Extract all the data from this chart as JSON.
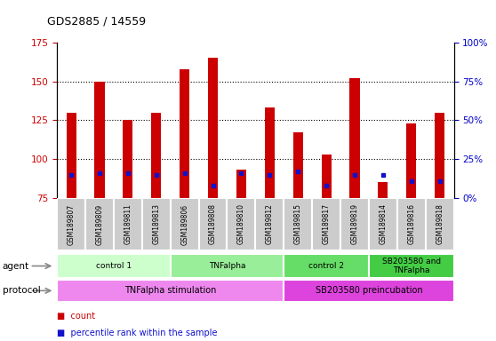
{
  "title": "GDS2885 / 14559",
  "samples": [
    "GSM189807",
    "GSM189809",
    "GSM189811",
    "GSM189813",
    "GSM189806",
    "GSM189808",
    "GSM189810",
    "GSM189812",
    "GSM189815",
    "GSM189817",
    "GSM189819",
    "GSM189814",
    "GSM189816",
    "GSM189818"
  ],
  "count_values": [
    130,
    150,
    125,
    130,
    158,
    165,
    93,
    133,
    117,
    103,
    152,
    85,
    123,
    130
  ],
  "percentile_values": [
    90,
    91,
    91,
    90,
    91,
    83,
    91,
    90,
    92,
    83,
    90,
    90,
    86,
    86
  ],
  "baseline": 75,
  "ylim": [
    75,
    175
  ],
  "y2lim": [
    0,
    100
  ],
  "yticks": [
    75,
    100,
    125,
    150,
    175
  ],
  "y2ticks": [
    0,
    25,
    50,
    75,
    100
  ],
  "y2ticklabels": [
    "0%",
    "25%",
    "50%",
    "75%",
    "100%"
  ],
  "bar_color": "#cc0000",
  "dot_color": "#1111cc",
  "bar_width": 0.35,
  "agent_groups": [
    {
      "label": "control 1",
      "start": 0,
      "end": 3,
      "color": "#ccffcc"
    },
    {
      "label": "TNFalpha",
      "start": 4,
      "end": 7,
      "color": "#99ee99"
    },
    {
      "label": "control 2",
      "start": 8,
      "end": 10,
      "color": "#66dd66"
    },
    {
      "label": "SB203580 and\nTNFalpha",
      "start": 11,
      "end": 13,
      "color": "#44cc44"
    }
  ],
  "protocol_groups": [
    {
      "label": "TNFalpha stimulation",
      "start": 0,
      "end": 7,
      "color": "#ee88ee"
    },
    {
      "label": "SB203580 preincubation",
      "start": 8,
      "end": 13,
      "color": "#dd44dd"
    }
  ],
  "sample_bg_color": "#cccccc",
  "sample_border_color": "#ffffff"
}
